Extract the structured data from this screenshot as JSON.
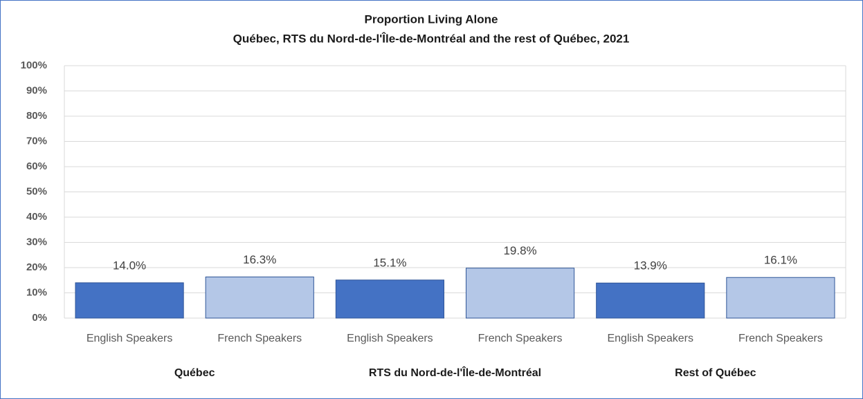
{
  "chart_data": {
    "type": "bar",
    "title": "Proportion Living Alone",
    "subtitle": "Québec, RTS du Nord-de-l'Île-de-Montréal and the rest of Québec, 2021",
    "categories": [
      "English Speakers",
      "French Speakers",
      "English Speakers",
      "French Speakers",
      "English Speakers",
      "French Speakers"
    ],
    "groups": [
      "Québec",
      "RTS du Nord-de-l'Île-de-Montréal",
      "Rest of Québec"
    ],
    "values": [
      14.0,
      16.3,
      15.1,
      19.8,
      13.9,
      16.1
    ],
    "value_labels": [
      "14.0%",
      "16.3%",
      "15.1%",
      "19.8%",
      "13.9%",
      "16.1%"
    ],
    "colors": [
      "#4472c4",
      "#b4c7e7",
      "#4472c4",
      "#b4c7e7",
      "#4472c4",
      "#b4c7e7"
    ],
    "ylim": [
      0,
      100
    ],
    "yticks": [
      {
        "value": 0,
        "label": "0%"
      },
      {
        "value": 10,
        "label": "10%"
      },
      {
        "value": 20,
        "label": "20%"
      },
      {
        "value": 30,
        "label": "30%"
      },
      {
        "value": 40,
        "label": "40%"
      },
      {
        "value": 50,
        "label": "50%"
      },
      {
        "value": 60,
        "label": "60%"
      },
      {
        "value": 70,
        "label": "70%"
      },
      {
        "value": 80,
        "label": "80%"
      },
      {
        "value": 90,
        "label": "90%"
      },
      {
        "value": 100,
        "label": "100%"
      }
    ],
    "grid": true
  }
}
